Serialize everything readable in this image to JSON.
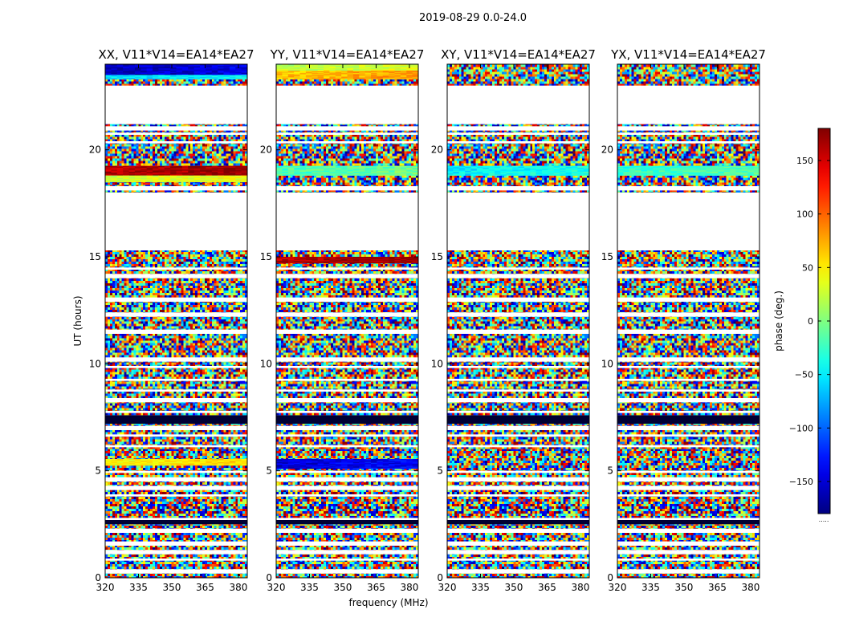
{
  "chart_data": {
    "type": "heatmap",
    "suptitle": "2019-08-29 0.0-24.0",
    "xlabel": "frequency (MHz)",
    "ylabel": "UT (hours)",
    "xlim": [
      320,
      384
    ],
    "ylim": [
      0,
      24
    ],
    "xticks": [
      "320",
      "335",
      "350",
      "365",
      "380"
    ],
    "xtick_values": [
      320,
      335,
      350,
      365,
      380
    ],
    "yticks": [
      "0",
      "5",
      "10",
      "15",
      "20"
    ],
    "ytick_values": [
      0,
      5,
      10,
      15,
      20
    ],
    "panels": [
      {
        "title": "XX, V11*V14=EA14*EA27",
        "structured_bands": [
          {
            "t0": 18.8,
            "t1": 19.25,
            "phase": 160
          },
          {
            "t0": 18.5,
            "t1": 18.8,
            "phase": 25
          },
          {
            "t0": 5.25,
            "t1": 5.55,
            "phase": 45
          },
          {
            "t0": 23.5,
            "t1": 24.0,
            "phase": -160
          },
          {
            "t0": 23.3,
            "t1": 23.5,
            "phase": -60
          }
        ]
      },
      {
        "title": "YY, V11*V14=EA14*EA27",
        "structured_bands": [
          {
            "t0": 23.7,
            "t1": 24.0,
            "phase": 20
          },
          {
            "t0": 23.3,
            "t1": 23.7,
            "phase": 65
          },
          {
            "t0": 18.8,
            "t1": 19.25,
            "phase": -20
          },
          {
            "t0": 14.7,
            "t1": 15.0,
            "phase": 160
          },
          {
            "t0": 5.1,
            "t1": 5.55,
            "phase": -150
          }
        ]
      },
      {
        "title": "XY, V11*V14=EA14*EA27",
        "structured_bands": [
          {
            "t0": 18.8,
            "t1": 19.25,
            "phase": -50
          }
        ]
      },
      {
        "title": "YX, V11*V14=EA14*EA27",
        "structured_bands": [
          {
            "t0": 18.8,
            "t1": 19.25,
            "phase": -30
          }
        ]
      }
    ],
    "empty_ut_ranges": [
      [
        21.2,
        23.0
      ],
      [
        18.15,
        18.35
      ],
      [
        15.35,
        18.0
      ],
      [
        0.25,
        0.45
      ],
      [
        1.5,
        1.7
      ],
      [
        4.9,
        5.05
      ],
      [
        6.6,
        6.75
      ],
      [
        10.15,
        10.3
      ]
    ],
    "white_row_times": [
      0.85,
      1.2,
      2.2,
      2.75,
      3.85,
      4.2,
      4.6,
      6.15,
      7.0,
      7.75,
      8.3,
      8.75,
      9.25,
      9.85,
      11.5,
      12.3,
      13.0,
      14.1,
      14.45,
      20.35,
      20.75,
      21.0
    ],
    "dark_row_times": [
      2.55,
      2.6,
      7.3,
      7.5
    ],
    "colorbar": {
      "label": "phase (deg.)",
      "range": [
        -180,
        180
      ],
      "ticks": [
        "150",
        "100",
        "50",
        "0",
        "−50",
        "−100",
        "−150"
      ],
      "tick_values": [
        150,
        100,
        50,
        0,
        -50,
        -100,
        -150
      ],
      "colormap": "jet",
      "footer": "....."
    }
  }
}
